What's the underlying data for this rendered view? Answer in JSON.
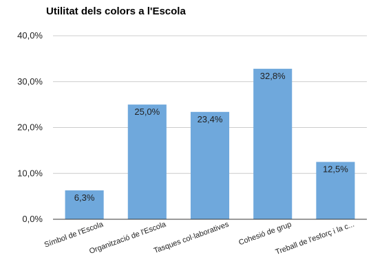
{
  "chart_data": {
    "type": "bar",
    "title": "Utilitat dels colors a l'Escola",
    "xlabel": "",
    "ylabel": "",
    "categories": [
      "Símbol de l'Escola",
      "Organització de l'Escola",
      "Tasques col·laboratives",
      "Cohesió de grup",
      "Treball de l'esforç i la c..."
    ],
    "values": [
      6.3,
      25.0,
      23.4,
      32.8,
      12.5
    ],
    "value_labels": [
      "6,3%",
      "25,0%",
      "23,4%",
      "32,8%",
      "12,5%"
    ],
    "y_ticks": [
      0,
      10,
      20,
      30,
      40
    ],
    "y_tick_labels": [
      "0,0%",
      "10,0%",
      "20,0%",
      "30,0%",
      "40,0%"
    ],
    "ylim": [
      0,
      40
    ],
    "grid": true,
    "legend": "none",
    "colors": {
      "bar": "#6fa8dc",
      "grid": "#cccccc",
      "axis": "#333333",
      "text": "#222222"
    }
  }
}
